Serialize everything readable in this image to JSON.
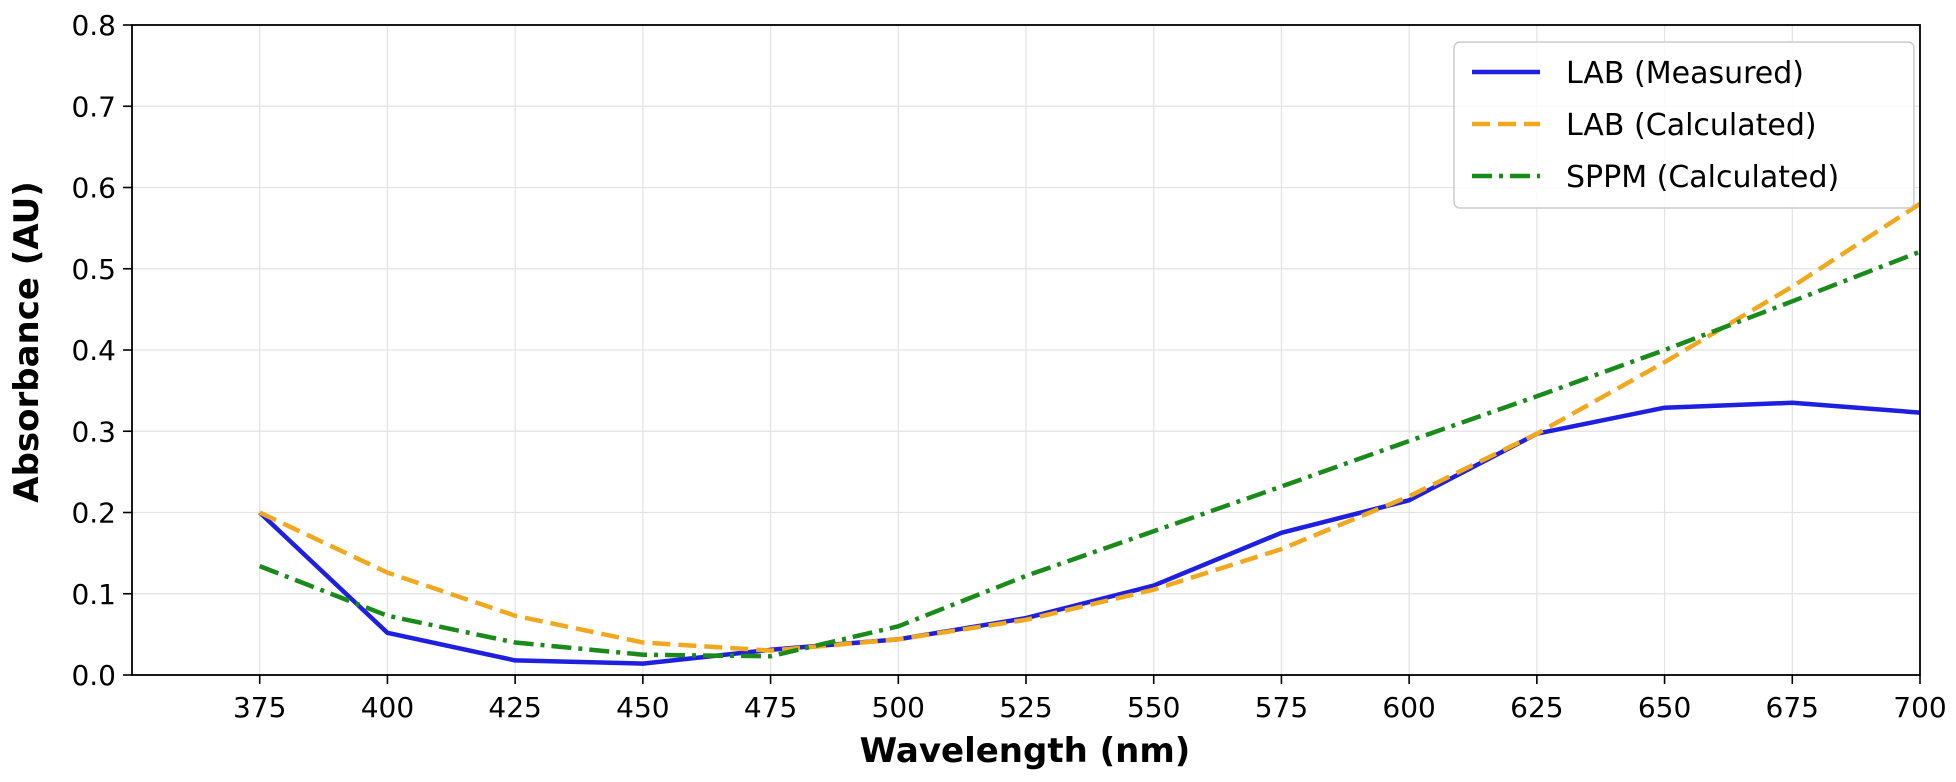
{
  "chart_data": {
    "type": "line",
    "title": "",
    "xlabel": "Wavelength (nm)",
    "ylabel": "Absorbance (AU)",
    "xlim": [
      350,
      700
    ],
    "ylim": [
      0.0,
      0.8
    ],
    "xticks": [
      375,
      400,
      425,
      450,
      475,
      500,
      525,
      550,
      575,
      600,
      625,
      650,
      675,
      700
    ],
    "yticks": [
      0.0,
      0.1,
      0.2,
      0.3,
      0.4,
      0.5,
      0.6,
      0.7,
      0.8
    ],
    "xtick_labels": [
      "375",
      "400",
      "425",
      "450",
      "475",
      "500",
      "525",
      "550",
      "575",
      "600",
      "625",
      "650",
      "675",
      "700"
    ],
    "ytick_labels": [
      "0.0",
      "0.1",
      "0.2",
      "0.3",
      "0.4",
      "0.5",
      "0.6",
      "0.7",
      "0.8"
    ],
    "grid": true,
    "legend_position": "top-right",
    "x": [
      375,
      400,
      425,
      450,
      475,
      500,
      525,
      550,
      575,
      600,
      625,
      650,
      675,
      700
    ],
    "series": [
      {
        "name": "LAB (Measured)",
        "color": "#1f1fe0",
        "style": "solid",
        "values": [
          0.2,
          0.052,
          0.018,
          0.014,
          0.031,
          0.044,
          0.07,
          0.11,
          0.175,
          0.215,
          0.297,
          0.329,
          0.335,
          0.323
        ]
      },
      {
        "name": "LAB (Calculated)",
        "color": "#f0a81e",
        "style": "dashed",
        "values": [
          0.2,
          0.126,
          0.073,
          0.04,
          0.03,
          0.044,
          0.068,
          0.105,
          0.155,
          0.22,
          0.297,
          0.385,
          0.478,
          0.58
        ]
      },
      {
        "name": "SPPM (Calculated)",
        "color": "#1a8a1a",
        "style": "dashdot",
        "values": [
          0.134,
          0.073,
          0.04,
          0.025,
          0.023,
          0.06,
          0.122,
          0.177,
          0.232,
          0.288,
          0.343,
          0.4,
          0.46,
          0.521
        ]
      }
    ]
  }
}
